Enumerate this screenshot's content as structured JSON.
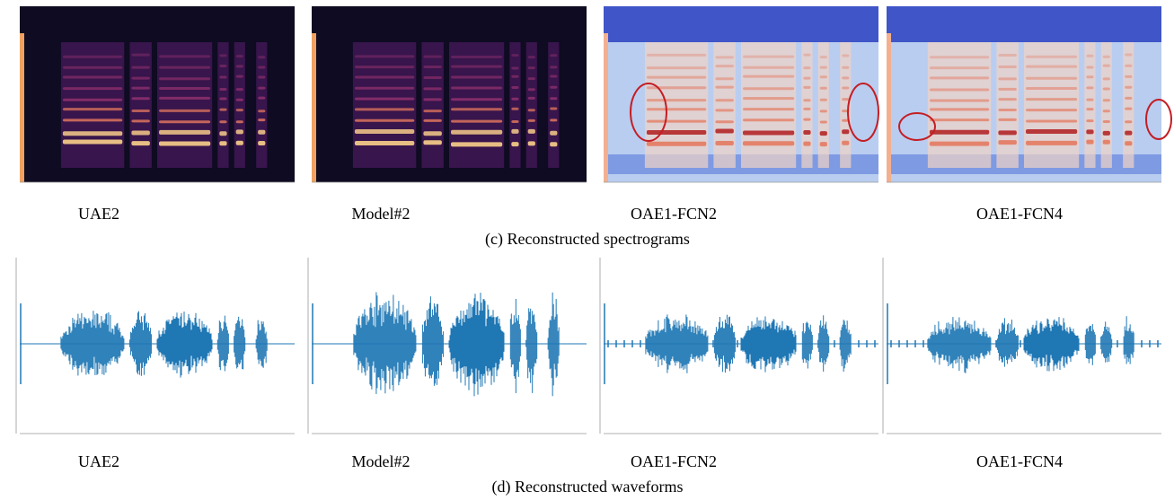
{
  "spectrograms": {
    "labels": [
      "UAE2",
      "Model#2",
      "OAE1-FCN2",
      "OAE1-FCN4"
    ],
    "caption": "(c) Reconstructed spectrograms"
  },
  "waveforms": {
    "labels": [
      "UAE2",
      "Model#2",
      "OAE1-FCN2",
      "OAE1-FCN4"
    ],
    "caption": "(d) Reconstructed waveforms"
  }
}
